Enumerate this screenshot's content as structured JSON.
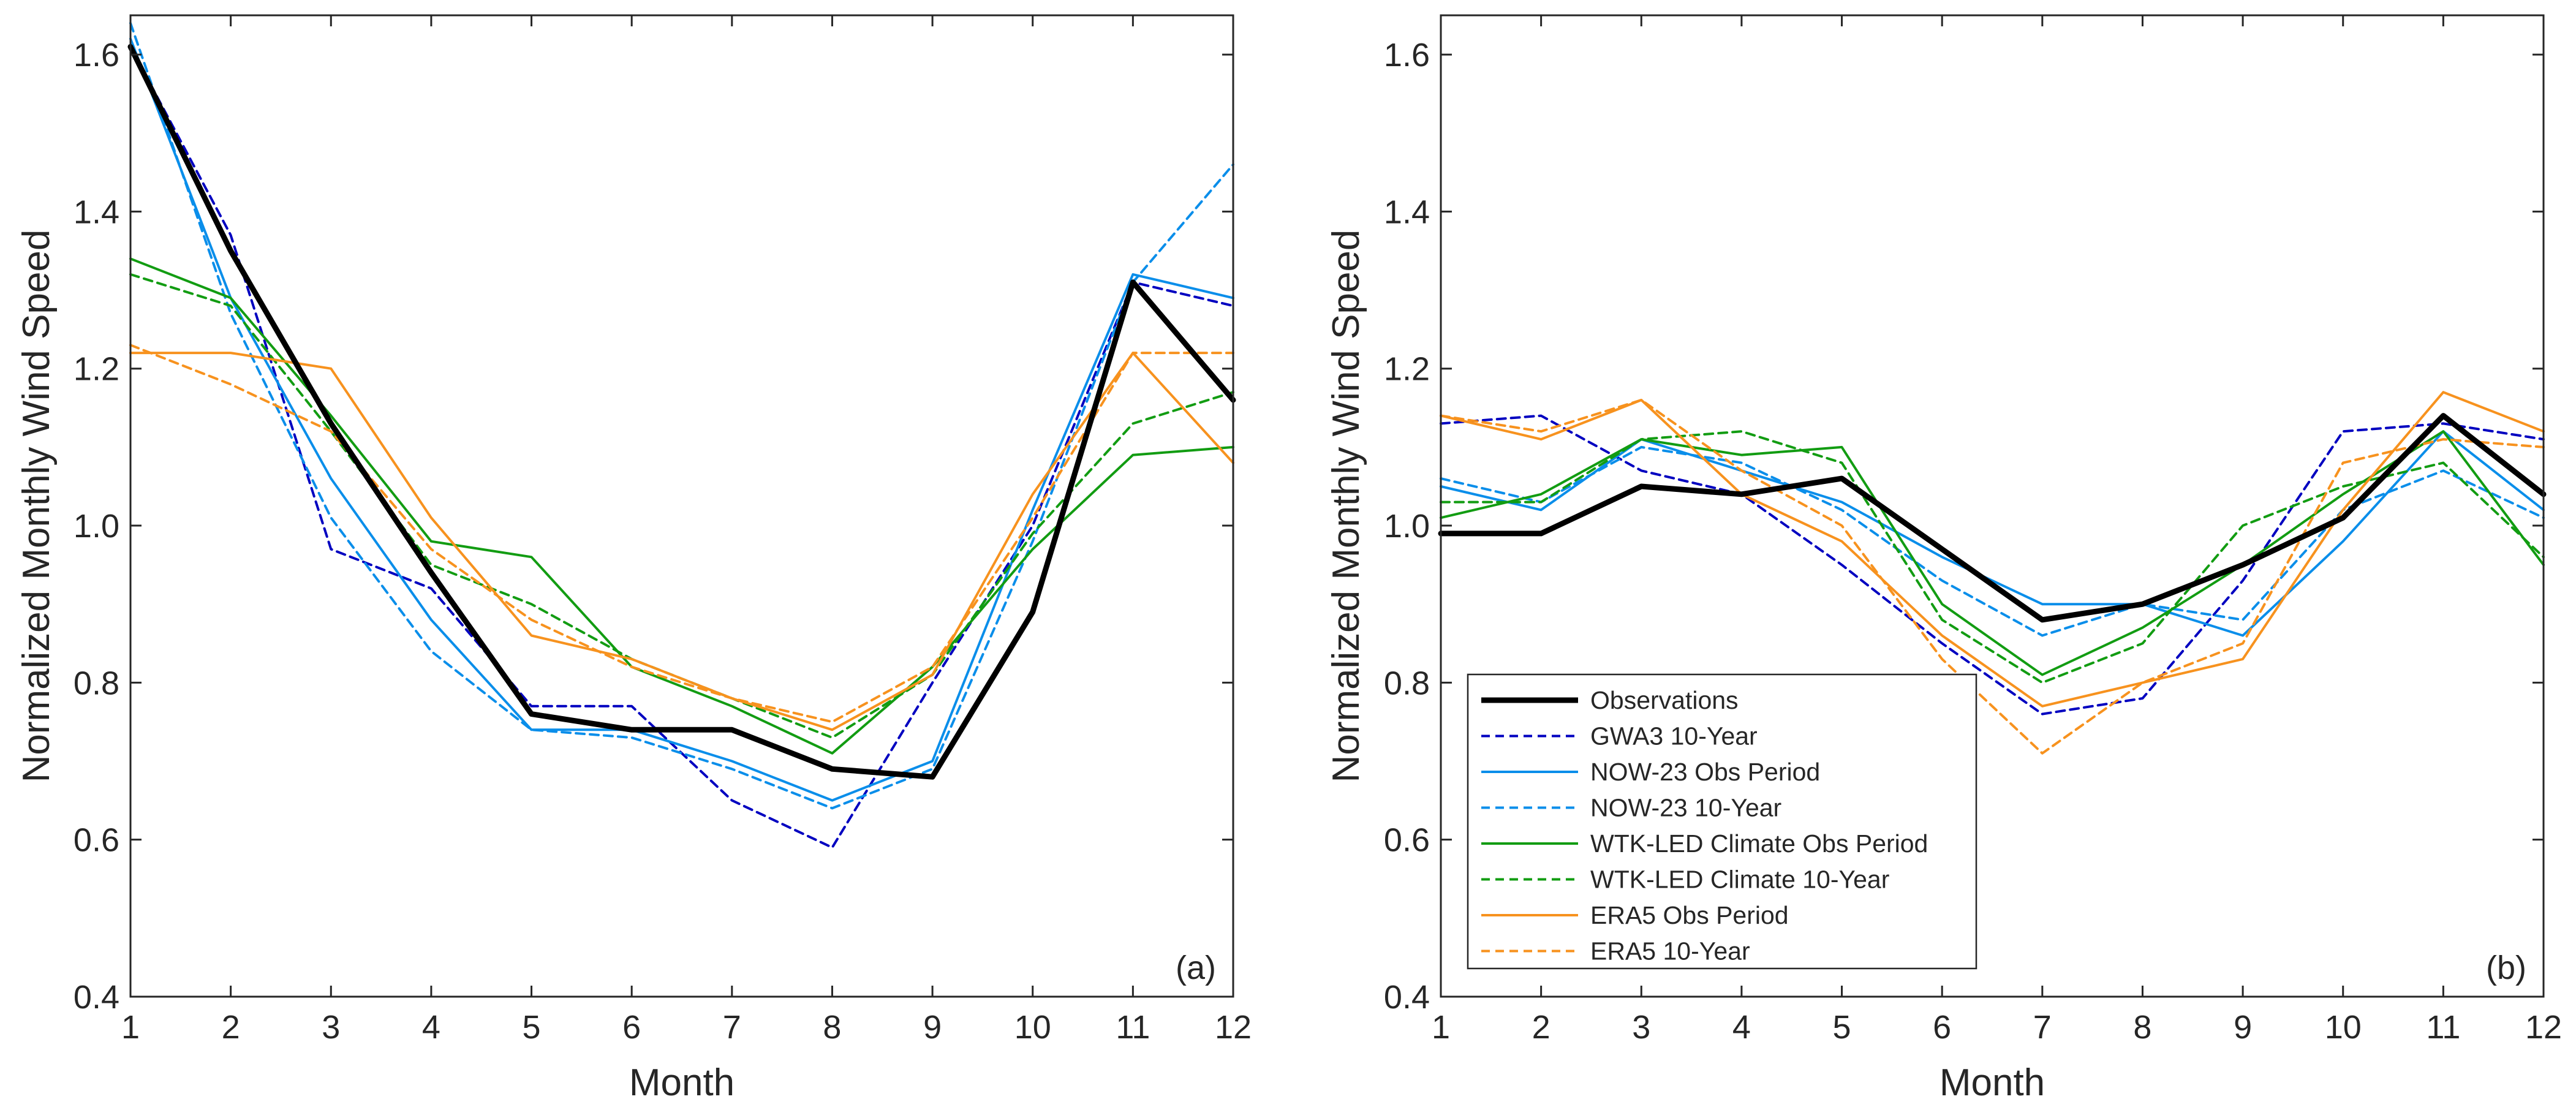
{
  "chart_data": [
    {
      "type": "line",
      "panel_label": "(a)",
      "xlabel": "Month",
      "ylabel": "Normalized Monthly Wind Speed",
      "xlim": [
        1,
        12
      ],
      "ylim": [
        0.4,
        1.65
      ],
      "x": [
        1,
        2,
        3,
        4,
        5,
        6,
        7,
        8,
        9,
        10,
        11,
        12
      ],
      "xticks": [
        "1",
        "2",
        "3",
        "4",
        "5",
        "6",
        "7",
        "8",
        "9",
        "10",
        "11",
        "12"
      ],
      "yticks": [
        "0.4",
        "0.6",
        "0.8",
        "1.0",
        "1.2",
        "1.4",
        "1.6"
      ],
      "grid": false,
      "series": [
        {
          "name": "GWA3 10-Year",
          "color": "#0000c0",
          "style": "dashed",
          "values": [
            1.61,
            1.37,
            0.97,
            0.92,
            0.77,
            0.77,
            0.65,
            0.59,
            0.8,
            1.0,
            1.31,
            1.28
          ]
        },
        {
          "name": "NOW-23 Obs Period",
          "color": "#0a8eea",
          "style": "solid",
          "values": [
            1.62,
            1.29,
            1.06,
            0.88,
            0.74,
            0.74,
            0.7,
            0.65,
            0.7,
            1.02,
            1.32,
            1.29
          ]
        },
        {
          "name": "NOW-23 10-Year",
          "color": "#0a8eea",
          "style": "dashed",
          "values": [
            1.64,
            1.27,
            1.01,
            0.84,
            0.74,
            0.73,
            0.69,
            0.64,
            0.69,
            0.98,
            1.31,
            1.46
          ]
        },
        {
          "name": "WTK-LED Climate Obs Period",
          "color": "#129c12",
          "style": "solid",
          "values": [
            1.34,
            1.29,
            1.14,
            0.98,
            0.96,
            0.82,
            0.77,
            0.71,
            0.82,
            0.97,
            1.09,
            1.1
          ]
        },
        {
          "name": "WTK-LED Climate 10-Year",
          "color": "#129c12",
          "style": "dashed",
          "values": [
            1.32,
            1.28,
            1.12,
            0.95,
            0.9,
            0.83,
            0.78,
            0.73,
            0.81,
            0.99,
            1.13,
            1.17
          ]
        },
        {
          "name": "ERA5 Obs Period",
          "color": "#f7921e",
          "style": "solid",
          "values": [
            1.22,
            1.22,
            1.2,
            1.01,
            0.86,
            0.83,
            0.78,
            0.74,
            0.81,
            1.04,
            1.22,
            1.08
          ]
        },
        {
          "name": "ERA5 10-Year",
          "color": "#f7921e",
          "style": "dashed",
          "values": [
            1.23,
            1.18,
            1.12,
            0.97,
            0.88,
            0.82,
            0.78,
            0.75,
            0.82,
            1.01,
            1.22,
            1.22
          ]
        },
        {
          "name": "Observations",
          "color": "#000000",
          "style": "bold",
          "values": [
            1.61,
            1.35,
            1.13,
            0.94,
            0.76,
            0.74,
            0.74,
            0.69,
            0.68,
            0.89,
            1.31,
            1.16
          ]
        }
      ]
    },
    {
      "type": "line",
      "panel_label": "(b)",
      "xlabel": "Month",
      "ylabel": "Normalized Monthly Wind Speed",
      "xlim": [
        1,
        12
      ],
      "ylim": [
        0.4,
        1.65
      ],
      "x": [
        1,
        2,
        3,
        4,
        5,
        6,
        7,
        8,
        9,
        10,
        11,
        12
      ],
      "xticks": [
        "1",
        "2",
        "3",
        "4",
        "5",
        "6",
        "7",
        "8",
        "9",
        "10",
        "11",
        "12"
      ],
      "yticks": [
        "0.4",
        "0.6",
        "0.8",
        "1.0",
        "1.2",
        "1.4",
        "1.6"
      ],
      "grid": false,
      "legend": {
        "location": "lower-left",
        "entries": [
          {
            "name": "Observations",
            "color": "#000000",
            "style": "bold"
          },
          {
            "name": "GWA3 10-Year",
            "color": "#0000c0",
            "style": "dashed"
          },
          {
            "name": "NOW-23 Obs Period",
            "color": "#0a8eea",
            "style": "solid"
          },
          {
            "name": "NOW-23 10-Year",
            "color": "#0a8eea",
            "style": "dashed"
          },
          {
            "name": "WTK-LED Climate Obs Period",
            "color": "#129c12",
            "style": "solid"
          },
          {
            "name": "WTK-LED Climate 10-Year",
            "color": "#129c12",
            "style": "dashed"
          },
          {
            "name": "ERA5 Obs Period",
            "color": "#f7921e",
            "style": "solid"
          },
          {
            "name": "ERA5 10-Year",
            "color": "#f7921e",
            "style": "dashed"
          }
        ]
      },
      "series": [
        {
          "name": "GWA3 10-Year",
          "color": "#0000c0",
          "style": "dashed",
          "values": [
            1.13,
            1.14,
            1.07,
            1.04,
            0.95,
            0.85,
            0.76,
            0.78,
            0.93,
            1.12,
            1.13,
            1.11
          ]
        },
        {
          "name": "NOW-23 Obs Period",
          "color": "#0a8eea",
          "style": "solid",
          "values": [
            1.05,
            1.02,
            1.11,
            1.07,
            1.03,
            0.96,
            0.9,
            0.9,
            0.86,
            0.98,
            1.12,
            1.02
          ]
        },
        {
          "name": "NOW-23 10-Year",
          "color": "#0a8eea",
          "style": "dashed",
          "values": [
            1.06,
            1.03,
            1.1,
            1.08,
            1.02,
            0.93,
            0.86,
            0.9,
            0.88,
            1.02,
            1.07,
            1.01
          ]
        },
        {
          "name": "WTK-LED Climate Obs Period",
          "color": "#129c12",
          "style": "solid",
          "values": [
            1.01,
            1.04,
            1.11,
            1.09,
            1.1,
            0.9,
            0.81,
            0.87,
            0.95,
            1.04,
            1.12,
            0.95
          ]
        },
        {
          "name": "WTK-LED Climate 10-Year",
          "color": "#129c12",
          "style": "dashed",
          "values": [
            1.03,
            1.03,
            1.11,
            1.12,
            1.08,
            0.88,
            0.8,
            0.85,
            1.0,
            1.05,
            1.08,
            0.96
          ]
        },
        {
          "name": "ERA5 Obs Period",
          "color": "#f7921e",
          "style": "solid",
          "values": [
            1.14,
            1.11,
            1.16,
            1.04,
            0.98,
            0.86,
            0.77,
            0.8,
            0.83,
            1.02,
            1.17,
            1.12
          ]
        },
        {
          "name": "ERA5 10-Year",
          "color": "#f7921e",
          "style": "dashed",
          "values": [
            1.14,
            1.12,
            1.16,
            1.07,
            1.0,
            0.83,
            0.71,
            0.8,
            0.85,
            1.08,
            1.11,
            1.1
          ]
        },
        {
          "name": "Observations",
          "color": "#000000",
          "style": "bold",
          "values": [
            0.99,
            0.99,
            1.05,
            1.04,
            1.06,
            0.97,
            0.88,
            0.9,
            0.95,
            1.01,
            1.14,
            1.04
          ]
        }
      ]
    }
  ]
}
